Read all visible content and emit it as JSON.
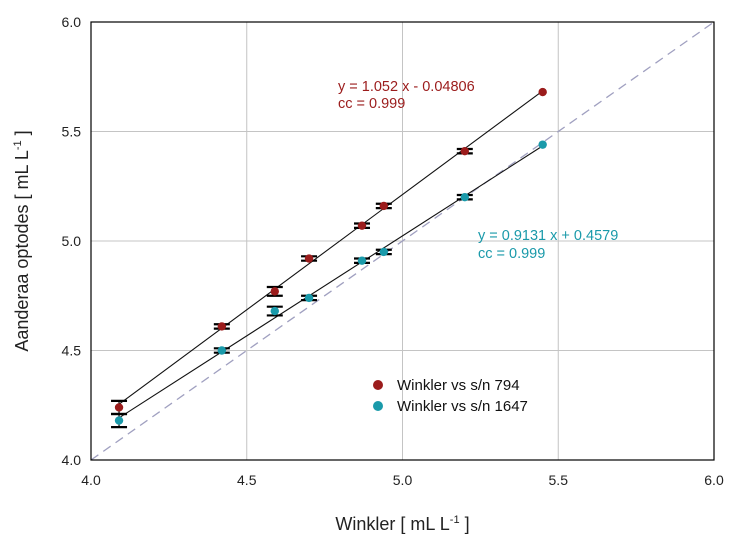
{
  "chart_data": {
    "type": "scatter",
    "xlabel": "Winkler [ mL L",
    "xlabel_sup": "-1",
    "xlabel_end": " ]",
    "ylabel": "Aanderaa optodes [ mL L",
    "ylabel_sup": "-1",
    "ylabel_end": " ]",
    "xlim": [
      4.0,
      6.0
    ],
    "ylim": [
      4.0,
      6.0
    ],
    "xticks": [
      "4.0",
      "4.5",
      "5.0",
      "5.5",
      "6.0"
    ],
    "yticks": [
      "4.0",
      "4.5",
      "5.0",
      "5.5",
      "6.0"
    ],
    "grid": true,
    "legend_position": "lower-center",
    "reference_line": {
      "type": "1:1",
      "style": "dashed",
      "color": "#a0a0c0"
    },
    "series": [
      {
        "name": "Winkler vs s/n 794",
        "color": "#9b1c1c",
        "points": [
          {
            "x": 4.09,
            "y": 4.24,
            "err": 0.03
          },
          {
            "x": 4.42,
            "y": 4.61,
            "err": 0.01
          },
          {
            "x": 4.59,
            "y": 4.77,
            "err": 0.02
          },
          {
            "x": 4.7,
            "y": 4.92,
            "err": 0.01
          },
          {
            "x": 4.87,
            "y": 5.07,
            "err": 0.01
          },
          {
            "x": 4.94,
            "y": 5.16,
            "err": 0.01
          },
          {
            "x": 5.2,
            "y": 5.41,
            "err": 0.01
          },
          {
            "x": 5.45,
            "y": 5.68,
            "err": 0.0
          }
        ],
        "fit": {
          "slope": 1.052,
          "intercept": -0.04806,
          "x_range": [
            4.09,
            5.45
          ]
        },
        "equation": "y = 1.052 x - 0.04806",
        "cc": "cc = 0.999"
      },
      {
        "name": "Winkler vs s/n 1647",
        "color": "#1a9aaa",
        "points": [
          {
            "x": 4.09,
            "y": 4.18,
            "err": 0.03
          },
          {
            "x": 4.42,
            "y": 4.5,
            "err": 0.01
          },
          {
            "x": 4.59,
            "y": 4.68,
            "err": 0.02
          },
          {
            "x": 4.7,
            "y": 4.74,
            "err": 0.01
          },
          {
            "x": 4.87,
            "y": 4.91,
            "err": 0.01
          },
          {
            "x": 4.94,
            "y": 4.95,
            "err": 0.01
          },
          {
            "x": 5.2,
            "y": 5.2,
            "err": 0.01
          },
          {
            "x": 5.45,
            "y": 5.44,
            "err": 0.0
          }
        ],
        "fit": {
          "slope": 0.9131,
          "intercept": 0.4579,
          "x_range": [
            4.09,
            5.45
          ]
        },
        "equation": "y = 0.9131 x + 0.4579",
        "cc": "cc = 0.999"
      }
    ]
  }
}
